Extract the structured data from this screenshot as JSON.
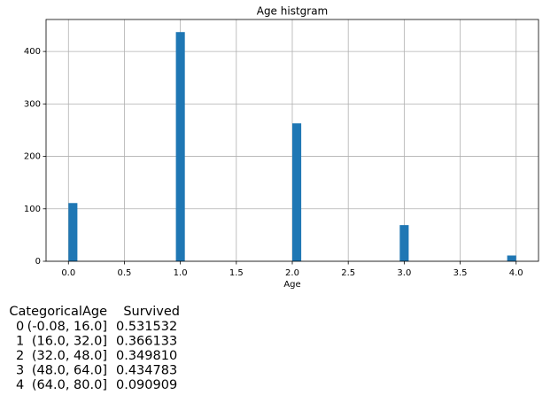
{
  "chart_data": {
    "type": "histogram",
    "title": "Age histgram",
    "x_label": "Age",
    "bins": [
      0,
      0.08,
      0.16,
      0.24,
      0.32,
      0.4,
      0.48,
      0.56,
      0.64,
      0.72,
      0.8,
      0.88,
      0.96,
      1.04,
      1.12,
      1.2,
      1.28,
      1.36,
      1.44,
      1.52,
      1.6,
      1.68,
      1.76,
      1.84,
      1.92,
      2,
      2.08,
      2.16,
      2.24,
      2.32,
      2.4,
      2.48,
      2.56,
      2.64,
      2.72,
      2.8,
      2.88,
      2.96,
      3.04,
      3.12,
      3.2,
      3.28,
      3.36,
      3.44,
      3.52,
      3.6,
      3.68,
      3.76,
      3.84,
      3.92,
      4
    ],
    "values": [
      111,
      0,
      0,
      0,
      0,
      0,
      0,
      0,
      0,
      0,
      0,
      0,
      437,
      0,
      0,
      0,
      0,
      0,
      0,
      0,
      0,
      0,
      0,
      0,
      0,
      263,
      0,
      0,
      0,
      0,
      0,
      0,
      0,
      0,
      0,
      0,
      0,
      69,
      0,
      0,
      0,
      0,
      0,
      0,
      0,
      0,
      0,
      0,
      0,
      11
    ],
    "color": "#1f77b4",
    "xlim": [
      -0.2,
      4.2
    ],
    "xticks": [
      {
        "value": 0,
        "label": "0.0"
      },
      {
        "value": 0.5,
        "label": "0.5"
      },
      {
        "value": 1,
        "label": "1.0"
      },
      {
        "value": 1.5,
        "label": "1.5"
      },
      {
        "value": 2,
        "label": "2.0"
      },
      {
        "value": 2.5,
        "label": "2.5"
      },
      {
        "value": 3,
        "label": "3.0"
      },
      {
        "value": 3.5,
        "label": "3.5"
      },
      {
        "value": 4,
        "label": "4.0"
      }
    ],
    "ylim": [
      0,
      461
    ],
    "yticks": [
      0,
      100,
      200,
      300,
      400
    ],
    "grid": true
  },
  "table": {
    "columns": [
      "CategoricalAge",
      "Survived"
    ],
    "rows": [
      [
        "0",
        "(-0.08, 16.0]",
        "0.531532"
      ],
      [
        "1",
        "(16.0, 32.0]",
        "0.366133"
      ],
      [
        "2",
        "(32.0, 48.0]",
        "0.349810"
      ],
      [
        "3",
        "(48.0, 64.0]",
        "0.434783"
      ],
      [
        "4",
        "(64.0, 80.0]",
        "0.090909"
      ]
    ]
  }
}
